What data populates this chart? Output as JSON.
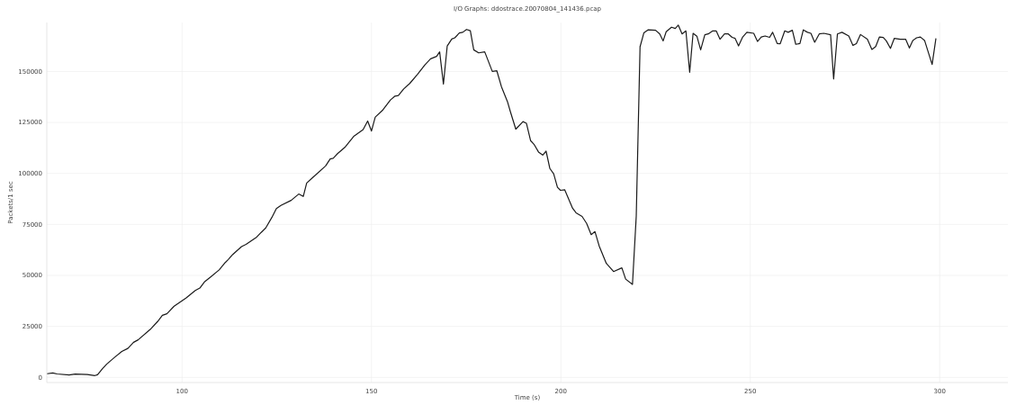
{
  "chart_data": {
    "type": "line",
    "title": "I/O Graphs: ddostrace.20070804_141436.pcap",
    "xlabel": "Time (s)",
    "ylabel": "Packets/1 sec",
    "xlim": [
      64.3,
      318
    ],
    "xticks": [
      100,
      150,
      200,
      250,
      300
    ],
    "ylim": [
      -2500,
      174000
    ],
    "yticks": [
      0,
      25000,
      50000,
      75000,
      100000,
      125000,
      150000
    ],
    "grid": true,
    "marker": "none",
    "line_style": "solid",
    "series": [
      {
        "color": "#1a1a1a",
        "x": [
          64.4,
          65.9,
          67,
          70.2,
          71.8,
          75,
          77,
          77.7,
          79,
          80.1,
          82.1,
          84.1,
          85.7,
          87.2,
          88.4,
          91.6,
          93.6,
          94.8,
          96,
          97.9,
          101.1,
          103.5,
          104.7,
          105.9,
          107.4,
          109.8,
          111.4,
          112.2,
          113.4,
          115.7,
          116.9,
          119.7,
          120.9,
          122.1,
          123.7,
          124.9,
          126.1,
          128.8,
          130.8,
          132,
          132.9,
          134.7,
          137.9,
          139.1,
          139.9,
          141.1,
          143.1,
          145.4,
          147.8,
          149,
          150,
          151,
          153,
          155,
          156.2,
          157.1,
          158.5,
          160.1,
          162.1,
          164.1,
          165.6,
          167.2,
          168,
          169,
          170,
          171.2,
          172,
          173.2,
          174.1,
          175.1,
          176.1,
          177,
          178.3,
          179.9,
          181.9,
          183.1,
          184.3,
          185.9,
          186.7,
          188.1,
          190,
          190.9,
          192,
          192.9,
          194.1,
          195.2,
          196.1,
          197.1,
          198.1,
          199.1,
          199.9,
          201,
          203.1,
          204,
          205.6,
          206.8,
          208,
          209,
          210.1,
          212,
          213.9,
          216.1,
          217.1,
          218.9,
          219.9,
          220.9,
          221.9,
          223,
          225,
          226.1,
          227,
          227.8,
          229.2,
          230.2,
          231,
          232,
          233,
          234,
          234.9,
          235.9,
          236.9,
          238,
          238.9,
          240.1,
          241,
          242,
          243.2,
          244.2,
          245.2,
          246,
          246.9,
          248,
          249.1,
          250.9,
          251.9,
          252.9,
          253.9,
          255.1,
          255.9,
          257.1,
          257.9,
          259.1,
          260,
          261.1,
          262,
          263.1,
          264,
          265.1,
          266,
          267,
          268.2,
          269.4,
          271.2,
          272,
          273,
          274.2,
          276,
          277.1,
          278,
          279.1,
          280.9,
          282.1,
          283.1,
          284.1,
          285.1,
          285.9,
          287,
          288,
          289.6,
          291,
          292,
          292.9,
          293.9,
          294.9,
          296,
          298,
          299
        ],
        "values": [
          1800,
          2200,
          1700,
          1200,
          1600,
          1400,
          900,
          1300,
          4300,
          6500,
          9700,
          12700,
          14200,
          17200,
          18400,
          23500,
          27500,
          30400,
          31200,
          34900,
          39000,
          42600,
          43800,
          46800,
          49000,
          52700,
          56300,
          57800,
          60300,
          64100,
          65200,
          68800,
          71100,
          73300,
          78400,
          82800,
          84300,
          86800,
          89900,
          88700,
          95300,
          98300,
          103700,
          107100,
          107400,
          109800,
          113000,
          118300,
          121500,
          125700,
          120800,
          127600,
          131100,
          136000,
          137900,
          138200,
          141400,
          144100,
          148500,
          153200,
          156200,
          157400,
          159600,
          143800,
          162500,
          165900,
          166500,
          168900,
          169200,
          170600,
          170000,
          160600,
          159100,
          159600,
          150000,
          150300,
          142600,
          135200,
          130100,
          121700,
          125400,
          124600,
          116100,
          114300,
          110500,
          109000,
          110900,
          102400,
          99800,
          93200,
          91700,
          92000,
          82900,
          80700,
          78900,
          75500,
          70000,
          71500,
          64500,
          55900,
          51900,
          53700,
          48200,
          45600,
          79200,
          162100,
          168900,
          170400,
          170200,
          168400,
          165000,
          169500,
          171700,
          171100,
          172700,
          168400,
          169900,
          149600,
          168700,
          167300,
          160600,
          168000,
          168400,
          169900,
          169900,
          165800,
          168400,
          168400,
          166700,
          166200,
          162500,
          166900,
          169200,
          168700,
          164700,
          166900,
          167400,
          166700,
          169200,
          163700,
          163600,
          169900,
          169200,
          170200,
          163300,
          163700,
          170400,
          169200,
          168700,
          164300,
          168400,
          168700,
          168000,
          146300,
          168400,
          169200,
          167400,
          162800,
          163600,
          168100,
          165800,
          160800,
          162200,
          166900,
          166700,
          165000,
          161300,
          166200,
          165800,
          165800,
          161500,
          165200,
          166500,
          166900,
          165200,
          153400,
          166200
        ]
      }
    ]
  }
}
